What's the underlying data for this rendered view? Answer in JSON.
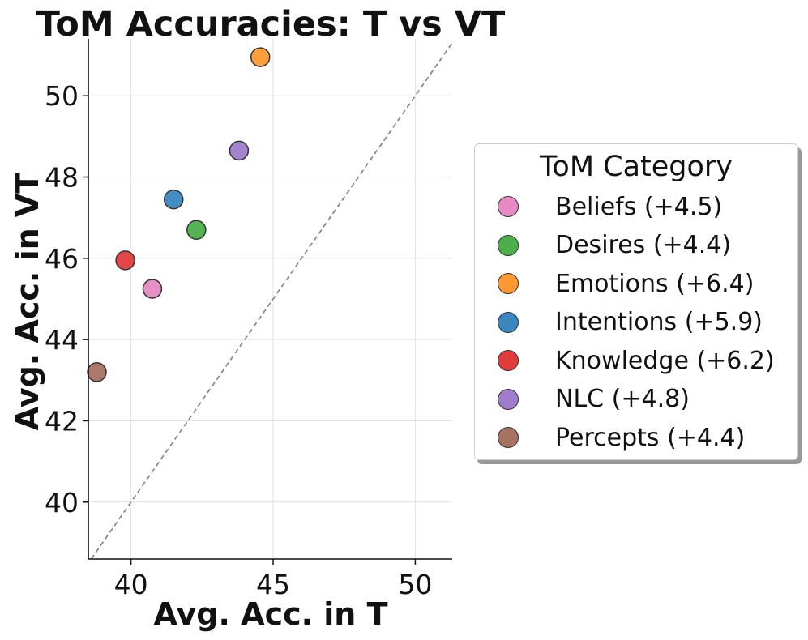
{
  "chart_data": {
    "type": "scatter",
    "title": "ToM Accuracies: T vs VT",
    "xlabel": "Avg. Acc. in T",
    "ylabel": "Avg. Acc. in VT",
    "xlim": [
      38.5,
      51.3
    ],
    "ylim": [
      38.6,
      51.4
    ],
    "xticks": [
      40,
      45,
      50
    ],
    "yticks": [
      40,
      42,
      44,
      46,
      48,
      50
    ],
    "grid": true,
    "diagonal": "y = x (dashed)",
    "legend_title": "ToM Category",
    "legend_position": "right",
    "series": [
      {
        "name": "Beliefs",
        "label": "Beliefs (+4.5)",
        "x": 40.75,
        "y": 45.25,
        "color": "#e78ac3"
      },
      {
        "name": "Desires",
        "label": "Desires (+4.4)",
        "x": 42.3,
        "y": 46.7,
        "color": "#4daf4a"
      },
      {
        "name": "Emotions",
        "label": "Emotions (+6.4)",
        "x": 44.55,
        "y": 50.95,
        "color": "#ff9933"
      },
      {
        "name": "Intentions",
        "label": "Intentions (+5.9)",
        "x": 41.5,
        "y": 47.45,
        "color": "#3a87c0"
      },
      {
        "name": "Knowledge",
        "label": "Knowledge (+6.2)",
        "x": 39.8,
        "y": 45.95,
        "color": "#e03c3c"
      },
      {
        "name": "NLC",
        "label": "NLC (+4.8)",
        "x": 43.8,
        "y": 48.65,
        "color": "#a07ccc"
      },
      {
        "name": "Percepts",
        "label": "Percepts (+4.4)",
        "x": 38.8,
        "y": 43.2,
        "color": "#a87262"
      }
    ]
  }
}
